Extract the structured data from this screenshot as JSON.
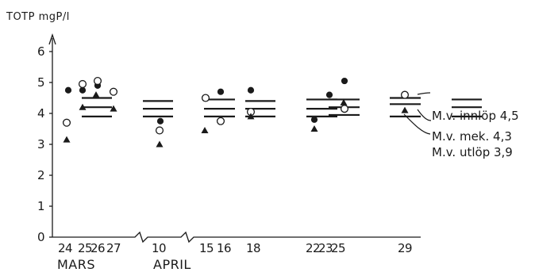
{
  "chart_data": {
    "type": "scatter",
    "title": "TOTP  mgP/l",
    "ylabel": "TOTP  mgP/l",
    "ylim": [
      0,
      6
    ],
    "yticks": [
      "0",
      "1",
      "2",
      "3",
      "4",
      "5",
      "6"
    ],
    "grid": false,
    "xtick_labels": [
      "24",
      "25",
      "26",
      "27",
      "10",
      "15",
      "16",
      "18",
      "22",
      "23",
      "25",
      "29"
    ],
    "month_labels": [
      "MARS",
      "APRIL"
    ],
    "markers": {
      "innlop": "filled-circle",
      "mek": "open-circle",
      "utlop": "filled-triangle"
    },
    "points": [
      {
        "date": "24",
        "innlop": 4.75,
        "mek": 3.7,
        "utlop": 3.15
      },
      {
        "date": "25",
        "innlop": 4.75,
        "mek": 4.95,
        "utlop": 4.2
      },
      {
        "date": "26",
        "innlop": 4.9,
        "mek": 5.05,
        "utlop": 4.6
      },
      {
        "date": "27",
        "innlop": null,
        "mek": 4.7,
        "utlop": 4.15
      },
      {
        "date": "10",
        "innlop": 3.75,
        "mek": 3.45,
        "utlop": 3.0
      },
      {
        "date": "15",
        "innlop": null,
        "mek": 4.5,
        "utlop": 3.45
      },
      {
        "date": "16",
        "innlop": 4.7,
        "mek": 3.75,
        "utlop": null
      },
      {
        "date": "18",
        "innlop": 4.75,
        "mek": 4.05,
        "utlop": 3.9
      },
      {
        "date": "22",
        "innlop": 3.8,
        "mek": null,
        "utlop": 3.5
      },
      {
        "date": "23",
        "innlop": 4.6,
        "mek": null,
        "utlop": null
      },
      {
        "date": "25",
        "innlop": 5.05,
        "mek": 4.15,
        "utlop": 4.35
      },
      {
        "date": "29",
        "innlop": null,
        "mek": 4.6,
        "utlop": 4.1
      }
    ],
    "means": [
      {
        "innlop": 4.5,
        "mek": 4.2,
        "utlop": 3.9
      },
      {
        "innlop": 4.4,
        "mek": 4.15,
        "utlop": 3.9
      },
      {
        "innlop": 4.45,
        "mek": 4.15,
        "utlop": 3.9
      },
      {
        "innlop": 4.4,
        "mek": 4.15,
        "utlop": 3.9
      },
      {
        "innlop": 4.45,
        "mek": 4.15,
        "utlop": 3.9
      },
      {
        "innlop": 4.45,
        "mek": 4.2,
        "utlop": 3.95
      },
      {
        "innlop": 4.5,
        "mek": 4.3,
        "utlop": 3.9
      }
    ],
    "annotations": [
      "M.v. innlöp 4,5",
      "M.v. mek. 4,3",
      "M.v. utlöp 3,9"
    ]
  }
}
